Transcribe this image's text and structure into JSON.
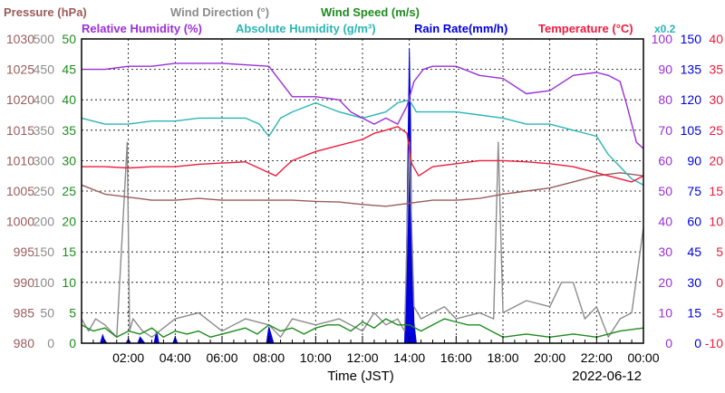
{
  "chart_data": {
    "type": "line",
    "date": "2022-06-12",
    "xlabel": "Time (JST)",
    "x_ticks": [
      "02:00",
      "04:00",
      "06:00",
      "08:00",
      "10:00",
      "12:00",
      "14:00",
      "16:00",
      "18:00",
      "20:00",
      "22:00",
      "00:00"
    ],
    "x_range_hours": [
      0,
      24
    ],
    "grid": true,
    "header_labels": [
      {
        "text": "Pressure (hPa)",
        "color": "#9b5b5b"
      },
      {
        "text": "Wind Direction (°)",
        "color": "#8c8c8c"
      },
      {
        "text": "Wind Speed (m/s)",
        "color": "#1e8c1e"
      },
      {
        "text": "Relative Humidity (%)",
        "color": "#9a2fd6"
      },
      {
        "text": "Absolute Humidity (g/m³)",
        "color": "#2ab5b5"
      },
      {
        "text": "Rain Rate(mm/h)",
        "color": "#0000dd"
      },
      {
        "text": "Temperature (°C)",
        "color": "#ee1c3c"
      },
      {
        "text": "x0.2",
        "color": "#2ab5b5"
      }
    ],
    "axes": {
      "pressure": {
        "label": "Pressure (hPa)",
        "color": "#9b5b5b",
        "ticks": [
          "980",
          "985",
          "990",
          "995",
          "1000",
          "1005",
          "1010",
          "1015",
          "1020",
          "1025",
          "1030"
        ],
        "range": [
          980,
          1030
        ]
      },
      "wind_direction": {
        "label": "Wind Direction (°)",
        "color": "#8c8c8c",
        "ticks": [
          "0",
          "50",
          "100",
          "150",
          "200",
          "250",
          "300",
          "350",
          "400",
          "450",
          "500"
        ],
        "range": [
          0,
          500
        ]
      },
      "wind_speed": {
        "label": "Wind Speed (m/s)",
        "color": "#1e8c1e",
        "ticks": [
          "0",
          "5",
          "10",
          "15",
          "20",
          "25",
          "30",
          "35",
          "40",
          "45",
          "50"
        ],
        "range": [
          0,
          50
        ]
      },
      "humidity": {
        "label": "Relative Humidity (%)",
        "color": "#9a2fd6",
        "ticks": [
          "0",
          "10",
          "20",
          "30",
          "40",
          "50",
          "60",
          "70",
          "80",
          "90",
          "100"
        ],
        "range": [
          0,
          100
        ]
      },
      "rain_rate": {
        "label": "Rain Rate(mm/h)",
        "color": "#0000dd",
        "ticks": [
          "0",
          "15",
          "30",
          "45",
          "60",
          "75",
          "90",
          "105",
          "120",
          "135",
          "150"
        ],
        "range": [
          0,
          150
        ]
      },
      "temperature": {
        "label": "Temperature (°C)",
        "color": "#ee1c3c",
        "ticks": [
          "-10",
          "-5",
          "0",
          "5",
          "10",
          "15",
          "20",
          "25",
          "30",
          "35",
          "40"
        ],
        "range": [
          -10,
          40
        ]
      }
    },
    "series": [
      {
        "name": "Pressure (hPa)",
        "axis": "pressure",
        "color": "#9b5b5b",
        "x": [
          0,
          1,
          2,
          3,
          4,
          5,
          6,
          7,
          8,
          9,
          10,
          11,
          12,
          13,
          14,
          15,
          16,
          17,
          18,
          19,
          20,
          21,
          22,
          23,
          24
        ],
        "y": [
          1006,
          1004.5,
          1004,
          1003.5,
          1003.5,
          1003.8,
          1003.5,
          1003.5,
          1003.5,
          1003.5,
          1003.3,
          1003.2,
          1002.8,
          1002.5,
          1003,
          1003.5,
          1003.5,
          1003.8,
          1004.5,
          1005,
          1005.5,
          1006.5,
          1007.5,
          1008,
          1007.5
        ]
      },
      {
        "name": "Relative Humidity (%)",
        "axis": "humidity",
        "color": "#9a2fd6",
        "x": [
          0,
          1,
          2,
          3,
          4,
          5,
          6,
          7,
          8,
          8.3,
          9,
          10,
          11,
          11.5,
          12,
          12.5,
          13,
          13.5,
          13.9,
          14.2,
          14.6,
          15,
          16,
          17,
          18,
          19,
          20,
          21,
          22,
          22.5,
          23,
          23.3,
          23.7,
          24
        ],
        "y": [
          90,
          90,
          91,
          91,
          92,
          92,
          92,
          91.5,
          91,
          88,
          81,
          81,
          80,
          76,
          74,
          72,
          74,
          72,
          78,
          86,
          90,
          91,
          91,
          88,
          87,
          82,
          83,
          88,
          89,
          88,
          86,
          78,
          66,
          64
        ]
      },
      {
        "name": "Absolute Humidity (g/m³)",
        "axis": "humidity",
        "color": "#2ab5b5",
        "x": [
          0,
          1,
          2,
          3,
          4,
          5,
          6,
          7,
          7.6,
          8,
          8.5,
          9,
          10,
          11,
          12,
          13,
          13.5,
          14,
          14.3,
          15,
          16,
          17,
          18,
          19,
          20,
          21,
          22,
          22.5,
          23,
          23.5,
          24
        ],
        "y": [
          74,
          72,
          72,
          73,
          73,
          74,
          74,
          74,
          72,
          68,
          74,
          76,
          79,
          76,
          74,
          76,
          79,
          80,
          76,
          76,
          76,
          75,
          74,
          72,
          72,
          70,
          68,
          62,
          58,
          54,
          52
        ]
      },
      {
        "name": "Temperature (°C)",
        "axis": "temperature",
        "color": "#ee1c3c",
        "x": [
          0,
          1,
          2,
          3,
          4,
          5,
          6,
          7,
          8,
          8.3,
          8.7,
          9,
          10,
          11,
          12,
          12.5,
          13,
          13.5,
          13.9,
          14.1,
          14.4,
          15,
          16,
          17,
          18,
          19,
          20,
          21,
          22,
          23,
          23.5,
          24
        ],
        "y": [
          19,
          19,
          18.8,
          19,
          19,
          19.4,
          19.6,
          19.8,
          18,
          17.5,
          19,
          20,
          21.5,
          22.5,
          23.5,
          24.5,
          25,
          25.6,
          24.5,
          19.5,
          17.5,
          19,
          19.5,
          20,
          20,
          19.8,
          19.5,
          19,
          18,
          17,
          16.5,
          17.5
        ]
      },
      {
        "name": "Wind Direction (°)",
        "axis": "wind_direction",
        "color": "#8c8c8c",
        "x": [
          0,
          0.3,
          0.6,
          1,
          1.5,
          1.95,
          2.05,
          2.2,
          2.6,
          3,
          4,
          5,
          6,
          7,
          8,
          8.5,
          9,
          10,
          11,
          12,
          12.5,
          13,
          13.5,
          13.8,
          14,
          14.2,
          14.5,
          15,
          15.5,
          16,
          17,
          17.6,
          17.8,
          18,
          19,
          20,
          20.5,
          21,
          21.5,
          22,
          22.5,
          23,
          23.5,
          24
        ],
        "y": [
          40,
          20,
          40,
          30,
          10,
          330,
          20,
          40,
          20,
          10,
          40,
          50,
          20,
          40,
          30,
          10,
          40,
          30,
          40,
          20,
          50,
          30,
          40,
          20,
          330,
          60,
          40,
          50,
          60,
          40,
          50,
          40,
          330,
          50,
          70,
          60,
          100,
          100,
          40,
          60,
          10,
          40,
          50,
          190
        ]
      },
      {
        "name": "Wind Speed (m/s)",
        "axis": "wind_speed",
        "color": "#1e8c1e",
        "x": [
          0,
          0.5,
          1,
          1.5,
          2,
          2.5,
          3,
          3.5,
          4,
          4.5,
          5,
          5.5,
          6,
          6.5,
          7,
          7.5,
          8,
          8.5,
          9,
          9.5,
          10,
          10.5,
          11,
          11.5,
          12,
          12.5,
          13,
          13.5,
          14,
          14.5,
          15,
          15.5,
          16,
          16.5,
          17,
          17.5,
          18,
          19,
          20,
          21,
          22,
          23,
          24
        ],
        "y": [
          3,
          2,
          2.5,
          1,
          2,
          1.5,
          2.5,
          1,
          2,
          1.5,
          2,
          1,
          1.5,
          2,
          2.5,
          1.5,
          3,
          2,
          2.5,
          1.5,
          2.5,
          3,
          3,
          2,
          3.5,
          2.5,
          4,
          3,
          3,
          2,
          3,
          4,
          3.5,
          3,
          3,
          2,
          1,
          1.5,
          1,
          1.5,
          1,
          2,
          2.5
        ]
      },
      {
        "name": "Rain Rate(mm/h)",
        "axis": "rain_rate",
        "color": "#0000dd",
        "style": "filled",
        "x": [
          0,
          0.8,
          0.9,
          1.0,
          1.1,
          1.9,
          2.0,
          2.1,
          2.4,
          2.5,
          2.7,
          3.1,
          3.2,
          3.3,
          3.9,
          4.0,
          4.1,
          7.9,
          8.0,
          8.1,
          8.2,
          13.8,
          13.85,
          13.9,
          14.0,
          14.05,
          14.1,
          14.2,
          14.3,
          24
        ],
        "y": [
          0,
          0,
          4,
          1,
          0,
          0,
          2,
          0,
          0,
          3,
          0,
          0,
          6,
          0,
          0,
          3,
          0,
          0,
          8,
          4,
          0,
          0,
          25,
          60,
          145,
          110,
          50,
          10,
          0,
          0
        ]
      }
    ]
  }
}
